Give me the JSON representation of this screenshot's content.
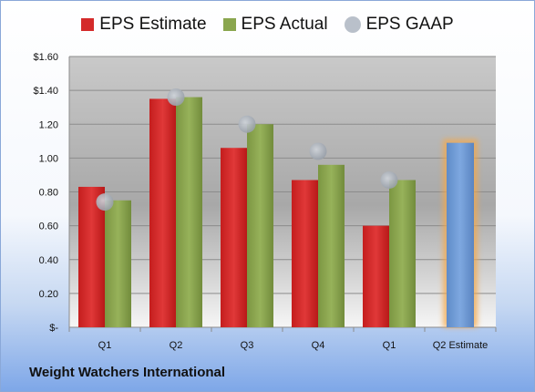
{
  "chart_data": {
    "type": "bar",
    "categories": [
      "Q1",
      "Q2",
      "Q3",
      "Q4",
      "Q1",
      "Q2 Estimate"
    ],
    "series": [
      {
        "name": "EPS Estimate",
        "values": [
          0.83,
          1.35,
          1.06,
          0.87,
          0.6,
          null
        ]
      },
      {
        "name": "EPS Actual",
        "values": [
          0.75,
          1.36,
          1.2,
          0.96,
          0.87,
          null
        ]
      },
      {
        "name": "EPS GAAP",
        "values": [
          0.74,
          1.36,
          1.2,
          1.04,
          0.87,
          null
        ]
      }
    ],
    "estimate_bar": {
      "category_index": 5,
      "value": 1.09
    },
    "ylim": [
      0,
      1.6
    ],
    "yticks": [
      0,
      0.2,
      0.4,
      0.6,
      0.8,
      1.0,
      1.2,
      1.4,
      1.6
    ],
    "ytick_labels": [
      "$-",
      "0.20",
      "0.40",
      "0.60",
      "0.80",
      "1.00",
      "1.20",
      "$1.40",
      "$1.60"
    ],
    "legend_position": "top",
    "colors": {
      "estimate": "#d42a2a",
      "actual": "#8aa64e",
      "gaap": "#a9b0ba",
      "q2_estimate": "#6f9bd6",
      "q2_estimate_glow": "#f5a84a"
    },
    "source_label": "Weight Watchers International"
  }
}
